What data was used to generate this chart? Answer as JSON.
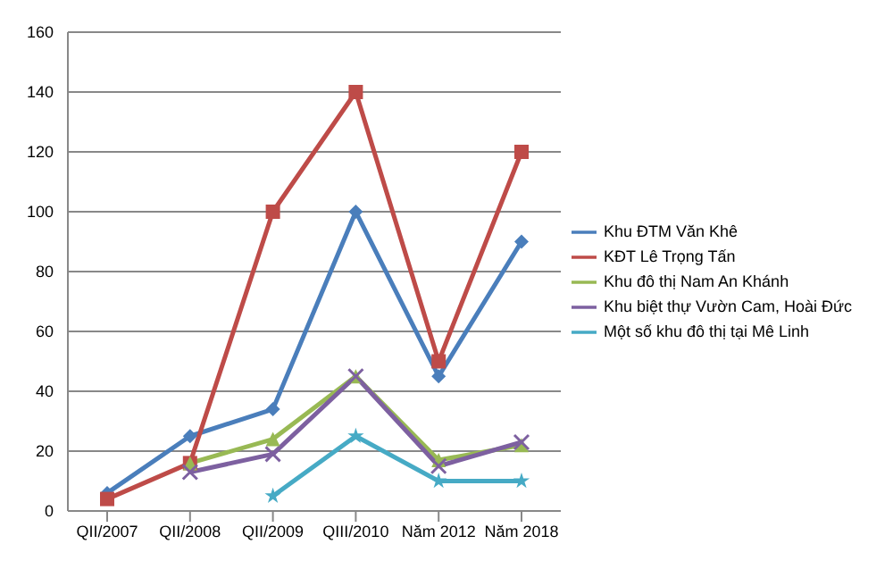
{
  "chart_data": {
    "type": "line",
    "categories": [
      "QII/2007",
      "QII/2008",
      "QII/2009",
      "QIII/2010",
      "Năm 2012",
      "Năm 2018"
    ],
    "series": [
      {
        "name": "Khu ĐTM  Văn Khê",
        "color": "#4a7ebb",
        "marker": "diamond",
        "values": [
          6,
          25,
          34,
          100,
          45,
          90
        ]
      },
      {
        "name": "KĐT Lê Trọng Tấn",
        "color": "#be4b48",
        "marker": "square",
        "values": [
          4,
          16,
          100,
          140,
          50,
          120
        ]
      },
      {
        "name": "Khu đô thị Nam An Khánh",
        "color": "#98b954",
        "marker": "triangle",
        "values": [
          null,
          16,
          24,
          45,
          17,
          22
        ]
      },
      {
        "name": "Khu biệt thự Vườn Cam, Hoài Đức",
        "color": "#7d60a0",
        "marker": "cross",
        "values": [
          null,
          13,
          19,
          45,
          15,
          23
        ]
      },
      {
        "name": "Một số khu đô thị tại Mê Linh",
        "color": "#46aac5",
        "marker": "star",
        "values": [
          null,
          null,
          5,
          25,
          10,
          10
        ]
      }
    ],
    "ylim": [
      0,
      160
    ],
    "yticks": [
      0,
      20,
      40,
      60,
      80,
      100,
      120,
      140,
      160
    ],
    "grid": "y",
    "legend": "right"
  }
}
